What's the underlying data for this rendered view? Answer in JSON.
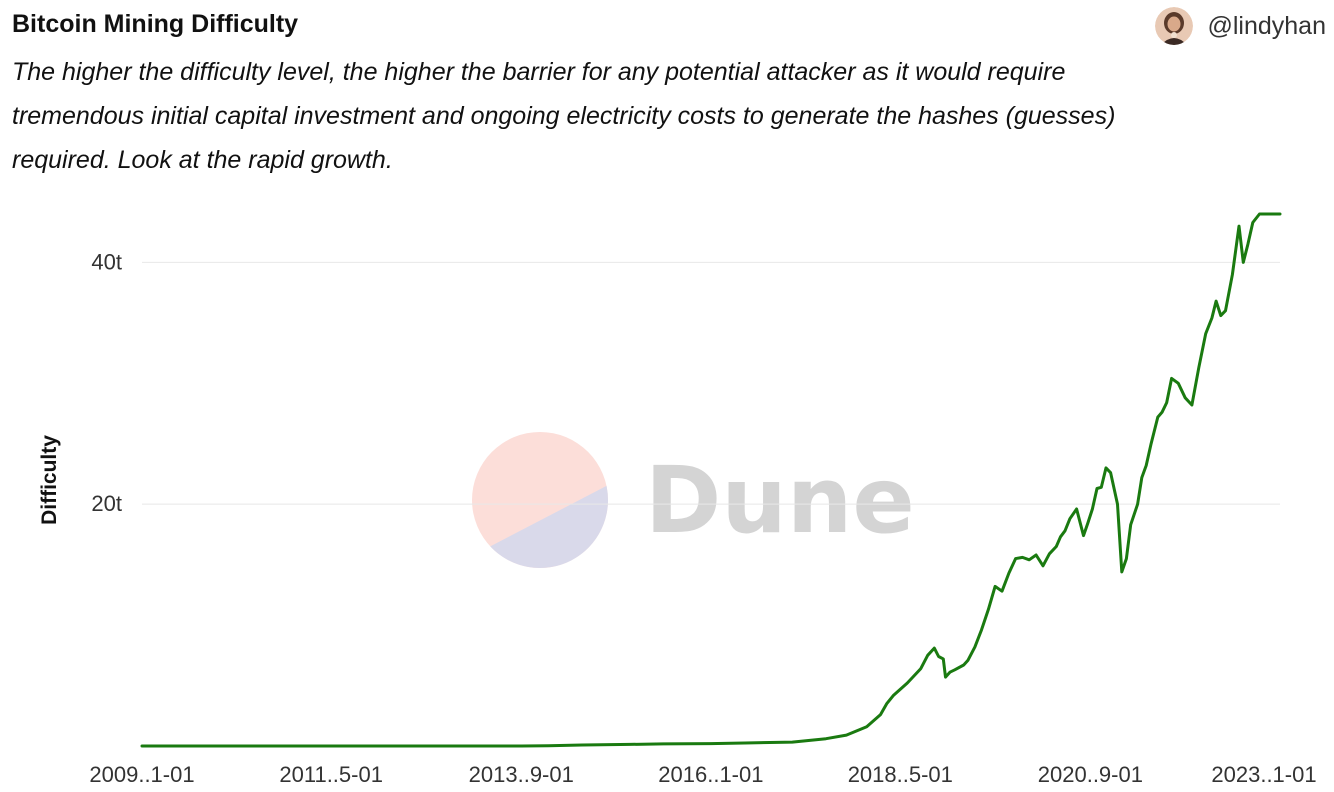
{
  "header": {
    "title": "Bitcoin Mining Difficulty",
    "username": "@lindyhan",
    "description": "The higher the difficulty level, the higher the barrier for any potential attacker as it would require tremendous initial capital investment and ongoing electricity costs to generate the hashes (guesses) required. Look at the rapid growth."
  },
  "watermark": {
    "text": "Dune",
    "color_top": "#fcded9",
    "color_bottom": "#d9d9ea"
  },
  "chart_data": {
    "type": "line",
    "ylabel": "Difficulty",
    "y_tick_labels": [
      "20t",
      "40t"
    ],
    "y_ticks": [
      20,
      40
    ],
    "ylim": [
      0,
      44
    ],
    "x_tick_labels": [
      "2009..1-01",
      "2011..5-01",
      "2013..9-01",
      "2016..1-01",
      "2018..5-01",
      "2020..9-01",
      "2023..1-01"
    ],
    "x_ticks": [
      "2009-01-01",
      "2011-05-01",
      "2013-09-01",
      "2016-01-01",
      "2018-05-01",
      "2020-09-01",
      "2023-01-01"
    ],
    "xlim": [
      "2009-01-01",
      "2023-01-01"
    ],
    "grid": true,
    "line_color": "#1a7a10",
    "series": [
      {
        "x": [
          "2009-01-01",
          "2010-01-01",
          "2011-01-01",
          "2012-01-01",
          "2013-01-01",
          "2013-09-01",
          "2014-01-01",
          "2014-06-01",
          "2015-01-01",
          "2015-06-01",
          "2016-01-01",
          "2016-06-01",
          "2017-01-01",
          "2017-06-01",
          "2017-09-01",
          "2017-12-01",
          "2018-02-01",
          "2018-03-01",
          "2018-04-01",
          "2018-06-01",
          "2018-08-01",
          "2018-09-01",
          "2018-10-01",
          "2018-10-20",
          "2018-11-10",
          "2018-11-20",
          "2018-12-10",
          "2019-01-01",
          "2019-02-10",
          "2019-03-01",
          "2019-04-01",
          "2019-05-01",
          "2019-06-01",
          "2019-07-01",
          "2019-08-01",
          "2019-09-01",
          "2019-10-01",
          "2019-11-01",
          "2019-12-01",
          "2020-01-01",
          "2020-02-01",
          "2020-03-01",
          "2020-04-01",
          "2020-04-20",
          "2020-05-10",
          "2020-06-01",
          "2020-07-01",
          "2020-08-01",
          "2020-08-20",
          "2020-09-10",
          "2020-10-01",
          "2020-10-20",
          "2020-11-10",
          "2020-12-01",
          "2021-01-01",
          "2021-01-20",
          "2021-02-10",
          "2021-03-01",
          "2021-04-01",
          "2021-04-20",
          "2021-05-10",
          "2021-06-01",
          "2021-07-01",
          "2021-07-20",
          "2021-08-10",
          "2021-09-01",
          "2021-10-01",
          "2021-11-01",
          "2021-12-01",
          "2022-01-01",
          "2022-02-01",
          "2022-03-01",
          "2022-03-20",
          "2022-04-10",
          "2022-05-01",
          "2022-06-01",
          "2022-07-01",
          "2022-07-20",
          "2022-08-10",
          "2022-09-01",
          "2022-10-01",
          "2022-10-20",
          "2022-11-10",
          "2022-12-01",
          "2023-01-01"
        ],
        "y": [
          0,
          0,
          0,
          0,
          0,
          0,
          0.02,
          0.08,
          0.13,
          0.17,
          0.2,
          0.25,
          0.32,
          0.6,
          0.9,
          1.6,
          2.6,
          3.5,
          4.2,
          5.2,
          6.4,
          7.5,
          8.1,
          7.4,
          7.2,
          5.7,
          6.1,
          6.3,
          6.7,
          7.1,
          8.2,
          9.6,
          11.3,
          13.2,
          12.8,
          14.3,
          15.5,
          15.6,
          15.4,
          15.8,
          14.9,
          15.9,
          16.5,
          17.3,
          17.8,
          18.8,
          19.6,
          17.4,
          18.4,
          19.6,
          21.3,
          21.4,
          23.0,
          22.6,
          20.0,
          14.4,
          15.5,
          18.3,
          20.0,
          22.2,
          23.2,
          25.0,
          27.2,
          27.6,
          28.4,
          30.4,
          30.0,
          28.8,
          28.2,
          31.3,
          34.1,
          35.4,
          36.8,
          35.6,
          36.0,
          39.0,
          43.0,
          40.0,
          41.5,
          43.3,
          44.0,
          44.0,
          44.0,
          44.0,
          44.0
        ]
      }
    ]
  }
}
